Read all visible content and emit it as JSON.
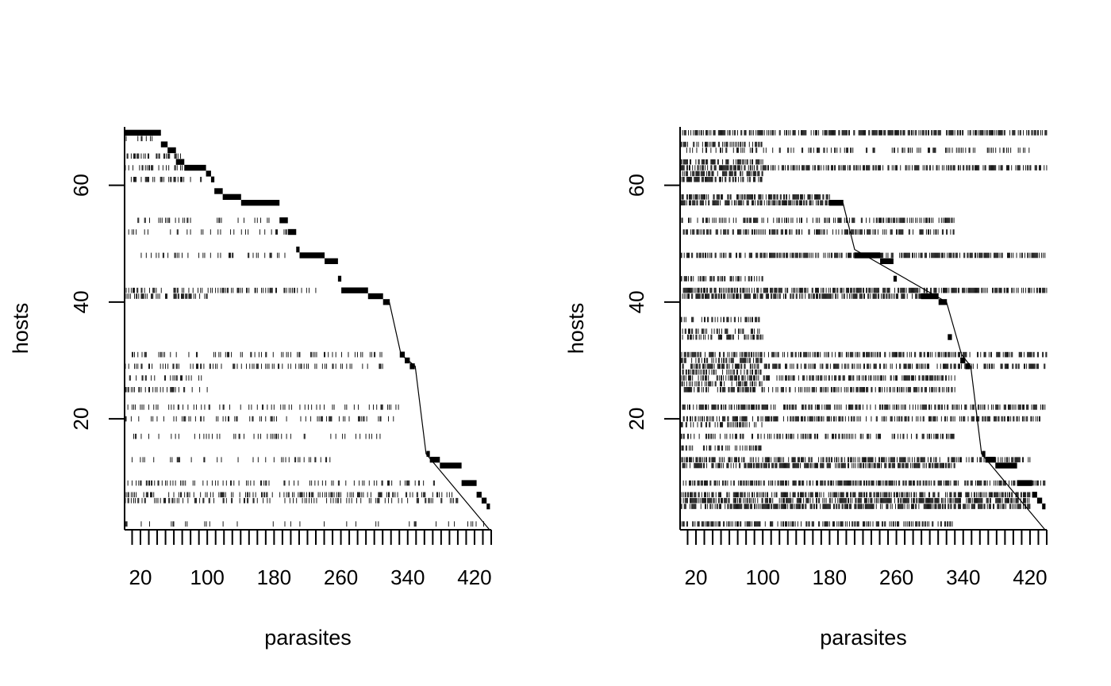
{
  "chart_data": [
    {
      "type": "heatmap",
      "panel": "left",
      "xlabel": "parasites",
      "ylabel": "hosts",
      "xlim": [
        1,
        440
      ],
      "ylim": [
        1,
        70
      ],
      "x_ticks": [
        10,
        20,
        30,
        40,
        50,
        60,
        70,
        80,
        90,
        100,
        110,
        120,
        130,
        140,
        150,
        160,
        170,
        180,
        190,
        200,
        210,
        220,
        230,
        240,
        250,
        260,
        270,
        280,
        290,
        300,
        310,
        320,
        330,
        340,
        350,
        360,
        370,
        380,
        390,
        400,
        410,
        420,
        430,
        440
      ],
      "x_tick_labels": [
        "20",
        "100",
        "180",
        "260",
        "340",
        "420"
      ],
      "y_tick_labels": [
        "20",
        "40",
        "60"
      ],
      "cell_color": "#000000",
      "staircase": [
        {
          "host": 69,
          "p": [
            1,
            44
          ]
        },
        {
          "host": 67,
          "p": [
            45,
            52
          ]
        },
        {
          "host": 66,
          "p": [
            53,
            62
          ]
        },
        {
          "host": 64,
          "p": [
            63,
            72
          ]
        },
        {
          "host": 63,
          "p": [
            73,
            98
          ]
        },
        {
          "host": 62,
          "p": [
            99,
            104
          ]
        },
        {
          "host": 61,
          "p": [
            105,
            108
          ]
        },
        {
          "host": 59,
          "p": [
            109,
            118
          ]
        },
        {
          "host": 58,
          "p": [
            119,
            140
          ]
        },
        {
          "host": 57,
          "p": [
            141,
            186
          ]
        },
        {
          "host": 54,
          "p": [
            187,
            196
          ]
        },
        {
          "host": 52,
          "p": [
            197,
            206
          ]
        },
        {
          "host": 49,
          "p": [
            207,
            210
          ]
        },
        {
          "host": 48,
          "p": [
            211,
            240
          ]
        },
        {
          "host": 47,
          "p": [
            241,
            256
          ]
        },
        {
          "host": 44,
          "p": [
            257,
            260
          ]
        },
        {
          "host": 42,
          "p": [
            261,
            292
          ]
        },
        {
          "host": 41,
          "p": [
            293,
            310
          ]
        },
        {
          "host": 40,
          "p": [
            311,
            318
          ]
        },
        {
          "host": 31,
          "p": [
            331,
            336
          ]
        },
        {
          "host": 30,
          "p": [
            337,
            342
          ]
        },
        {
          "host": 29,
          "p": [
            343,
            348
          ]
        },
        {
          "host": 14,
          "p": [
            363,
            366
          ]
        },
        {
          "host": 13,
          "p": [
            367,
            378
          ]
        },
        {
          "host": 12,
          "p": [
            379,
            404
          ]
        },
        {
          "host": 9,
          "p": [
            405,
            422
          ]
        },
        {
          "host": 7,
          "p": [
            423,
            428
          ]
        },
        {
          "host": 6,
          "p": [
            429,
            434
          ]
        },
        {
          "host": 5,
          "p": [
            435,
            438
          ]
        }
      ],
      "diagonal": [
        [
          318,
          40
        ],
        [
          332,
          31
        ],
        [
          349,
          29
        ],
        [
          362,
          14
        ],
        [
          438,
          1
        ]
      ],
      "scatter_rows": [
        {
          "host": 68,
          "p": [
            1,
            44
          ],
          "density": 0.22
        },
        {
          "host": 65,
          "p": [
            1,
            70
          ],
          "density": 0.35
        },
        {
          "host": 63,
          "p": [
            1,
            70
          ],
          "density": 0.3
        },
        {
          "host": 61,
          "p": [
            1,
            100
          ],
          "density": 0.3
        },
        {
          "host": 54,
          "p": [
            1,
            180
          ],
          "density": 0.15
        },
        {
          "host": 52,
          "p": [
            1,
            200
          ],
          "density": 0.15
        },
        {
          "host": 48,
          "p": [
            1,
            200
          ],
          "density": 0.18
        },
        {
          "host": 42,
          "p": [
            1,
            230
          ],
          "density": 0.35
        },
        {
          "host": 41,
          "p": [
            1,
            100
          ],
          "density": 0.35
        },
        {
          "host": 31,
          "p": [
            1,
            310
          ],
          "density": 0.2
        },
        {
          "host": 29,
          "p": [
            1,
            310
          ],
          "density": 0.25
        },
        {
          "host": 27,
          "p": [
            1,
            100
          ],
          "density": 0.3
        },
        {
          "host": 25,
          "p": [
            1,
            100
          ],
          "density": 0.3
        },
        {
          "host": 22,
          "p": [
            1,
            330
          ],
          "density": 0.2
        },
        {
          "host": 20,
          "p": [
            1,
            330
          ],
          "density": 0.2
        },
        {
          "host": 17,
          "p": [
            1,
            310
          ],
          "density": 0.12
        },
        {
          "host": 13,
          "p": [
            1,
            250
          ],
          "density": 0.2
        },
        {
          "host": 9,
          "p": [
            1,
            400
          ],
          "density": 0.2
        },
        {
          "host": 7,
          "p": [
            1,
            400
          ],
          "density": 0.3
        },
        {
          "host": 6,
          "p": [
            1,
            400
          ],
          "density": 0.25
        },
        {
          "host": 2,
          "p": [
            1,
            440
          ],
          "density": 0.1
        }
      ]
    },
    {
      "type": "heatmap",
      "panel": "right",
      "xlabel": "parasites",
      "ylabel": "hosts",
      "xlim": [
        1,
        440
      ],
      "ylim": [
        1,
        70
      ],
      "x_ticks": [
        10,
        20,
        30,
        40,
        50,
        60,
        70,
        80,
        90,
        100,
        110,
        120,
        130,
        140,
        150,
        160,
        170,
        180,
        190,
        200,
        210,
        220,
        230,
        240,
        250,
        260,
        270,
        280,
        290,
        300,
        310,
        320,
        330,
        340,
        350,
        360,
        370,
        380,
        390,
        400,
        410,
        420,
        430,
        440
      ],
      "x_tick_labels": [
        "20",
        "100",
        "180",
        "260",
        "340",
        "420"
      ],
      "y_tick_labels": [
        "20",
        "40",
        "60"
      ],
      "cell_color": "#000000",
      "staircase": [
        {
          "host": 57,
          "p": [
            180,
            196
          ]
        },
        {
          "host": 48,
          "p": [
            210,
            240
          ]
        },
        {
          "host": 47,
          "p": [
            241,
            256
          ]
        },
        {
          "host": 44,
          "p": [
            257,
            260
          ]
        },
        {
          "host": 41,
          "p": [
            290,
            310
          ]
        },
        {
          "host": 40,
          "p": [
            311,
            320
          ]
        },
        {
          "host": 34,
          "p": [
            322,
            326
          ]
        },
        {
          "host": 30,
          "p": [
            337,
            342
          ]
        },
        {
          "host": 29,
          "p": [
            343,
            348
          ]
        },
        {
          "host": 14,
          "p": [
            363,
            366
          ]
        },
        {
          "host": 13,
          "p": [
            367,
            378
          ]
        },
        {
          "host": 12,
          "p": [
            379,
            404
          ]
        },
        {
          "host": 9,
          "p": [
            405,
            422
          ]
        },
        {
          "host": 7,
          "p": [
            423,
            428
          ]
        },
        {
          "host": 6,
          "p": [
            429,
            434
          ]
        },
        {
          "host": 5,
          "p": [
            435,
            438
          ]
        }
      ],
      "diagonal": [
        [
          196,
          57
        ],
        [
          210,
          49
        ],
        [
          320,
          40
        ],
        [
          338,
          31
        ],
        [
          349,
          29
        ],
        [
          362,
          14
        ],
        [
          438,
          1
        ]
      ],
      "scatter_rows": [
        {
          "host": 69,
          "p": [
            1,
            440
          ],
          "density": 0.6
        },
        {
          "host": 67,
          "p": [
            1,
            100
          ],
          "density": 0.5
        },
        {
          "host": 66,
          "p": [
            1,
            420
          ],
          "density": 0.25
        },
        {
          "host": 64,
          "p": [
            1,
            100
          ],
          "density": 0.55
        },
        {
          "host": 63,
          "p": [
            1,
            440
          ],
          "density": 0.55
        },
        {
          "host": 62,
          "p": [
            1,
            100
          ],
          "density": 0.6
        },
        {
          "host": 61,
          "p": [
            1,
            100
          ],
          "density": 0.6
        },
        {
          "host": 58,
          "p": [
            1,
            180
          ],
          "density": 0.6
        },
        {
          "host": 57,
          "p": [
            1,
            180
          ],
          "density": 0.6
        },
        {
          "host": 54,
          "p": [
            1,
            330
          ],
          "density": 0.45
        },
        {
          "host": 52,
          "p": [
            1,
            330
          ],
          "density": 0.45
        },
        {
          "host": 48,
          "p": [
            1,
            440
          ],
          "density": 0.55
        },
        {
          "host": 44,
          "p": [
            1,
            100
          ],
          "density": 0.45
        },
        {
          "host": 42,
          "p": [
            1,
            440
          ],
          "density": 0.6
        },
        {
          "host": 41,
          "p": [
            1,
            290
          ],
          "density": 0.6
        },
        {
          "host": 37,
          "p": [
            1,
            100
          ],
          "density": 0.4
        },
        {
          "host": 35,
          "p": [
            1,
            100
          ],
          "density": 0.4
        },
        {
          "host": 34,
          "p": [
            1,
            100
          ],
          "density": 0.45
        },
        {
          "host": 31,
          "p": [
            1,
            440
          ],
          "density": 0.5
        },
        {
          "host": 30,
          "p": [
            1,
            100
          ],
          "density": 0.5
        },
        {
          "host": 29,
          "p": [
            1,
            440
          ],
          "density": 0.5
        },
        {
          "host": 28,
          "p": [
            1,
            100
          ],
          "density": 0.5
        },
        {
          "host": 27,
          "p": [
            1,
            330
          ],
          "density": 0.5
        },
        {
          "host": 26,
          "p": [
            1,
            100
          ],
          "density": 0.5
        },
        {
          "host": 25,
          "p": [
            1,
            330
          ],
          "density": 0.5
        },
        {
          "host": 22,
          "p": [
            1,
            440
          ],
          "density": 0.5
        },
        {
          "host": 20,
          "p": [
            1,
            440
          ],
          "density": 0.45
        },
        {
          "host": 19,
          "p": [
            1,
            100
          ],
          "density": 0.4
        },
        {
          "host": 17,
          "p": [
            1,
            330
          ],
          "density": 0.4
        },
        {
          "host": 15,
          "p": [
            1,
            100
          ],
          "density": 0.45
        },
        {
          "host": 13,
          "p": [
            1,
            420
          ],
          "density": 0.5
        },
        {
          "host": 12,
          "p": [
            1,
            330
          ],
          "density": 0.6
        },
        {
          "host": 9,
          "p": [
            1,
            440
          ],
          "density": 0.55
        },
        {
          "host": 7,
          "p": [
            1,
            420
          ],
          "density": 0.6
        },
        {
          "host": 6,
          "p": [
            1,
            420
          ],
          "density": 0.6
        },
        {
          "host": 5,
          "p": [
            1,
            420
          ],
          "density": 0.6
        },
        {
          "host": 2,
          "p": [
            1,
            330
          ],
          "density": 0.5
        }
      ]
    }
  ]
}
